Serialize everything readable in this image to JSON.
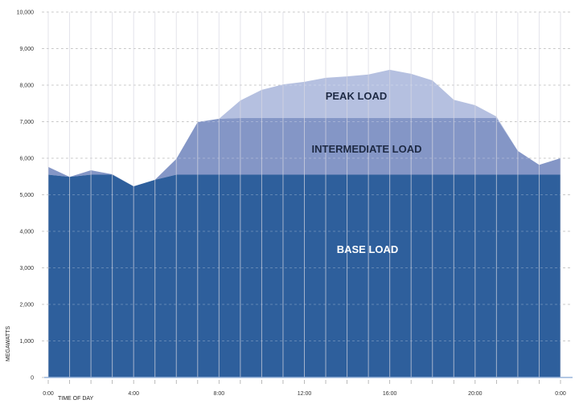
{
  "chart_data": {
    "type": "area",
    "title": "",
    "xlabel": "TIME OF DAY",
    "ylabel": "MEGAWATTS",
    "ylim": [
      0,
      10000
    ],
    "xlim": [
      0,
      24
    ],
    "y_ticks": [
      "0",
      "1,000",
      "2,000",
      "3,000",
      "4,000",
      "5,000",
      "6,000",
      "7,000",
      "8,000",
      "9,000",
      "10,000"
    ],
    "y_tick_values": [
      0,
      1000,
      2000,
      3000,
      4000,
      5000,
      6000,
      7000,
      8000,
      9000,
      10000
    ],
    "x_ticks": [
      "0:00",
      "4:00",
      "8:00",
      "12:00",
      "16:00",
      "20:00",
      "0:00"
    ],
    "x_tick_values": [
      0,
      4,
      8,
      12,
      16,
      20,
      24
    ],
    "hours": [
      0,
      1,
      2,
      3,
      4,
      5,
      6,
      7,
      8,
      9,
      10,
      11,
      12,
      13,
      14,
      15,
      16,
      17,
      18,
      19,
      20,
      21,
      22,
      23,
      24
    ],
    "total_load": [
      5760,
      5490,
      5670,
      5560,
      5230,
      5410,
      5980,
      6990,
      7080,
      7580,
      7870,
      8020,
      8090,
      8200,
      8240,
      8290,
      8420,
      8310,
      8130,
      7600,
      7450,
      7140,
      6200,
      5820,
      6000
    ],
    "base_load_level": 5550,
    "intermediate_load_level": 7100,
    "series": [
      {
        "name": "BASE LOAD",
        "color": "#2e5f9c"
      },
      {
        "name": "INTERMEDIATE LOAD",
        "color": "#8496c6"
      },
      {
        "name": "PEAK LOAD",
        "color": "#b5c0e0"
      }
    ],
    "grid": true
  }
}
